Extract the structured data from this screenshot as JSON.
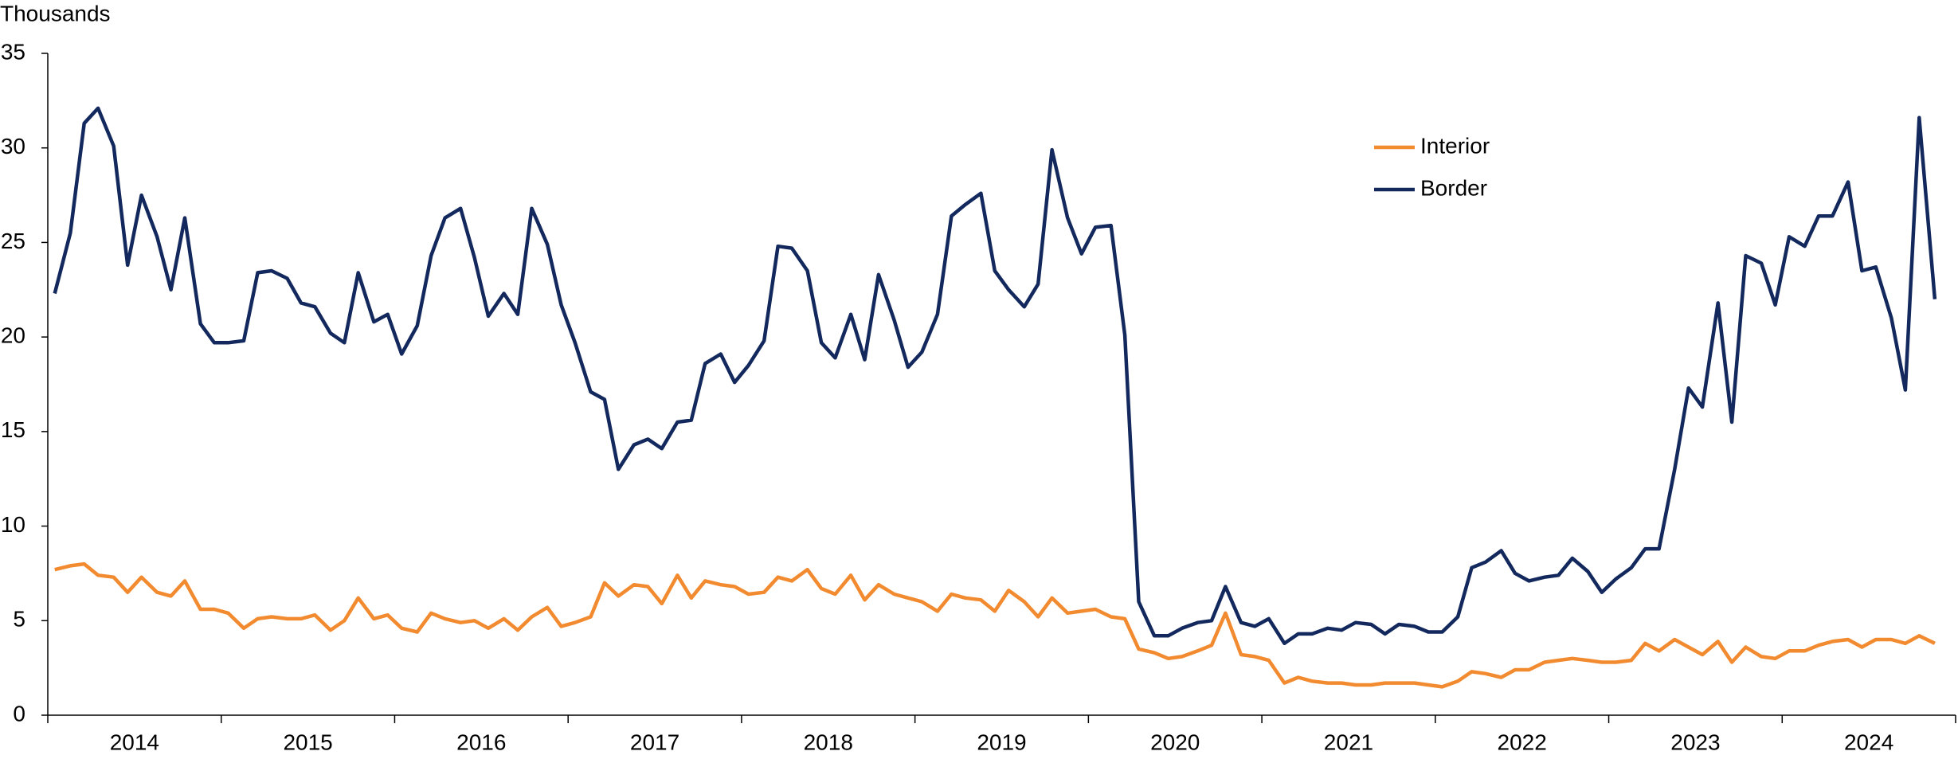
{
  "chart_data": {
    "type": "line",
    "y_axis_label": "Thousands",
    "x": [
      2014.04,
      2014.13,
      2014.21,
      2014.29,
      2014.38,
      2014.46,
      2014.54,
      2014.63,
      2014.71,
      2014.79,
      2014.88,
      2014.96,
      2015.04,
      2015.13,
      2015.21,
      2015.29,
      2015.38,
      2015.46,
      2015.54,
      2015.63,
      2015.71,
      2015.79,
      2015.88,
      2015.96,
      2016.04,
      2016.13,
      2016.21,
      2016.29,
      2016.38,
      2016.46,
      2016.54,
      2016.63,
      2016.71,
      2016.79,
      2016.88,
      2016.96,
      2017.04,
      2017.13,
      2017.21,
      2017.29,
      2017.38,
      2017.46,
      2017.54,
      2017.63,
      2017.71,
      2017.79,
      2017.88,
      2017.96,
      2018.04,
      2018.13,
      2018.21,
      2018.29,
      2018.38,
      2018.46,
      2018.54,
      2018.63,
      2018.71,
      2018.79,
      2018.88,
      2018.96,
      2019.04,
      2019.13,
      2019.21,
      2019.29,
      2019.38,
      2019.46,
      2019.54,
      2019.63,
      2019.71,
      2019.79,
      2019.88,
      2019.96,
      2020.04,
      2020.13,
      2020.21,
      2020.29,
      2020.38,
      2020.46,
      2020.54,
      2020.63,
      2020.71,
      2020.79,
      2020.88,
      2020.96,
      2021.04,
      2021.13,
      2021.21,
      2021.29,
      2021.38,
      2021.46,
      2021.54,
      2021.63,
      2021.71,
      2021.79,
      2021.88,
      2021.96,
      2022.04,
      2022.13,
      2022.21,
      2022.29,
      2022.38,
      2022.46,
      2022.54,
      2022.63,
      2022.71,
      2022.79,
      2022.88,
      2022.96,
      2023.04,
      2023.13,
      2023.21,
      2023.29,
      2023.38,
      2023.46,
      2023.54,
      2023.63,
      2023.71,
      2023.79,
      2023.88,
      2023.96,
      2024.04,
      2024.13,
      2024.21,
      2024.29,
      2024.38,
      2024.46,
      2024.54,
      2024.63,
      2024.71,
      2024.79,
      2024.88
    ],
    "series": [
      {
        "name": "Interior",
        "color": "#f28a30",
        "values": [
          7.7,
          7.9,
          8.0,
          7.4,
          7.3,
          6.5,
          7.3,
          6.5,
          6.3,
          7.1,
          5.6,
          5.6,
          5.4,
          4.6,
          5.1,
          5.2,
          5.1,
          5.1,
          5.3,
          4.5,
          5.0,
          6.2,
          5.1,
          5.3,
          4.6,
          4.4,
          5.4,
          5.1,
          4.9,
          5.0,
          4.6,
          5.1,
          4.5,
          5.2,
          5.7,
          4.7,
          4.9,
          5.2,
          7.0,
          6.3,
          6.9,
          6.8,
          5.9,
          7.4,
          6.2,
          7.1,
          6.9,
          6.8,
          6.4,
          6.5,
          7.3,
          7.1,
          7.7,
          6.7,
          6.4,
          7.4,
          6.1,
          6.9,
          6.4,
          6.2,
          6.0,
          5.5,
          6.4,
          6.2,
          6.1,
          5.5,
          6.6,
          6.0,
          5.2,
          6.2,
          5.4,
          5.5,
          5.6,
          5.2,
          5.1,
          3.5,
          3.3,
          3.0,
          3.1,
          3.4,
          3.7,
          5.4,
          3.2,
          3.1,
          2.9,
          1.7,
          2.0,
          1.8,
          1.7,
          1.7,
          1.6,
          1.6,
          1.7,
          1.7,
          1.7,
          1.6,
          1.5,
          1.8,
          2.3,
          2.2,
          2.0,
          2.4,
          2.4,
          2.8,
          2.9,
          3.0,
          2.9,
          2.8,
          2.8,
          2.9,
          3.8,
          3.4,
          4.0,
          3.6,
          3.2,
          3.9,
          2.8,
          3.6,
          3.1,
          3.0,
          3.4,
          3.4,
          3.7,
          3.9,
          4.0,
          3.6,
          4.0,
          4.0,
          3.8,
          4.2,
          3.8
        ]
      },
      {
        "name": "Border",
        "color": "#13295e",
        "values": [
          22.3,
          25.5,
          31.3,
          32.1,
          30.1,
          23.8,
          27.5,
          25.3,
          22.5,
          26.3,
          20.7,
          19.7,
          19.7,
          19.8,
          23.4,
          23.5,
          23.1,
          21.8,
          21.6,
          20.2,
          19.7,
          23.4,
          20.8,
          21.2,
          19.1,
          20.6,
          24.3,
          26.3,
          26.8,
          24.2,
          21.1,
          22.3,
          21.2,
          26.8,
          24.9,
          21.7,
          19.7,
          17.1,
          16.7,
          13.0,
          14.3,
          14.6,
          14.1,
          15.5,
          15.6,
          18.6,
          19.1,
          17.6,
          18.5,
          19.8,
          24.8,
          24.7,
          23.5,
          19.7,
          18.9,
          21.2,
          18.8,
          23.3,
          20.9,
          18.4,
          19.2,
          21.2,
          26.4,
          27.0,
          27.6,
          23.5,
          22.5,
          21.6,
          22.8,
          29.9,
          26.3,
          24.4,
          25.8,
          25.9,
          20.1,
          6.0,
          4.2,
          4.2,
          4.6,
          4.9,
          5.0,
          6.8,
          4.9,
          4.7,
          5.1,
          3.8,
          4.3,
          4.3,
          4.6,
          4.5,
          4.9,
          4.8,
          4.3,
          4.8,
          4.7,
          4.4,
          4.4,
          5.2,
          7.8,
          8.1,
          8.7,
          7.5,
          7.1,
          7.3,
          7.4,
          8.3,
          7.6,
          6.5,
          7.2,
          7.8,
          8.8,
          8.8,
          13.0,
          17.3,
          16.3,
          21.8,
          15.5,
          24.3,
          23.9,
          21.7,
          25.3,
          24.8,
          26.4,
          26.4,
          28.2,
          23.5,
          23.7,
          21.0,
          17.2,
          31.6,
          22.0
        ]
      }
    ],
    "xlim": [
      2014,
      2025
    ],
    "xticks": [
      2014,
      2015,
      2016,
      2017,
      2018,
      2019,
      2020,
      2021,
      2022,
      2023,
      2024,
      2025
    ],
    "ylim": [
      0,
      35
    ],
    "yticks": [
      0,
      5,
      10,
      15,
      20,
      25,
      30,
      35
    ],
    "grid": false,
    "legend": "upper right"
  }
}
